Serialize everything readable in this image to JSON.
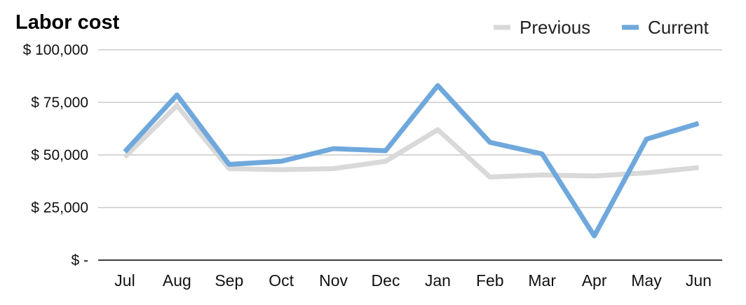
{
  "chart_data": {
    "type": "line",
    "title": "Labor cost",
    "xlabel": "",
    "ylabel": "",
    "categories": [
      "Jul",
      "Aug",
      "Sep",
      "Oct",
      "Nov",
      "Dec",
      "Jan",
      "Feb",
      "Mar",
      "Apr",
      "May",
      "Jun"
    ],
    "y_ticks": [
      0,
      25000,
      50000,
      75000,
      100000
    ],
    "y_tick_labels": [
      "$ -",
      "$ 25,000",
      "$ 50,000",
      "$ 75,000",
      "$ 100,000"
    ],
    "ylim": [
      0,
      100000
    ],
    "grid": true,
    "legend": "top-right",
    "series": [
      {
        "name": "Previous",
        "color": "#d9d9d9",
        "values": [
          49000,
          73500,
          43500,
          43000,
          43500,
          47000,
          62000,
          39500,
          40500,
          40000,
          41500,
          44000
        ]
      },
      {
        "name": "Current",
        "color": "#6fa8dc",
        "values": [
          51500,
          78500,
          45500,
          47000,
          53000,
          52000,
          83000,
          56000,
          50500,
          11500,
          57500,
          65000
        ]
      }
    ]
  }
}
